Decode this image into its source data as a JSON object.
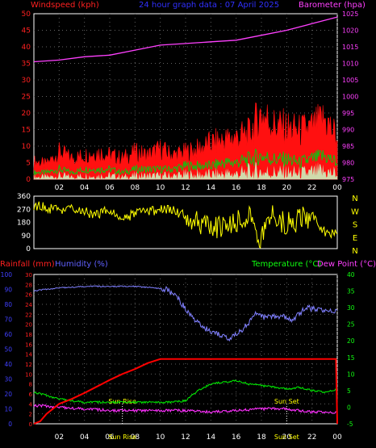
{
  "colors": {
    "background": "#000000",
    "red_axis": "#ff2020",
    "magenta": "#ff40ff",
    "blue": "#4040ff",
    "green": "#10ff10",
    "yellow": "#ffff00",
    "wind_gust": "#ff1010",
    "wind_avg": "#10c010",
    "wind_calm": "#c8ffc8",
    "humidity": "#8080ff",
    "dewpoint": "#ff30ff",
    "temperature": "#00e000",
    "rainfall": "#ff0000"
  },
  "chart_data": [
    {
      "type": "line",
      "panel": "wind-barometer",
      "title": "24 hour graph data : 07 April 2025",
      "left_axis_label": "Windspeed (kph)",
      "right_axis_label": "Barometer (hpa)",
      "left_ylim": [
        0,
        50
      ],
      "left_ticks": [
        "0",
        "5",
        "10",
        "15",
        "20",
        "25",
        "30",
        "35",
        "40",
        "45",
        "50"
      ],
      "right_ylim": [
        975,
        1025
      ],
      "right_ticks": [
        "975",
        "980",
        "985",
        "990",
        "995",
        "1000",
        "1005",
        "1010",
        "1015",
        "1020",
        "1025"
      ],
      "x_hours": [
        0,
        24
      ],
      "x_tick_labels": [
        "02",
        "04",
        "06",
        "08",
        "10",
        "12",
        "14",
        "16",
        "18",
        "20",
        "22",
        "00"
      ],
      "grid": true,
      "series": [
        {
          "name": "Barometer",
          "axis": "right",
          "color_key": "magenta",
          "x": [
            0,
            2,
            4,
            6,
            8,
            10,
            12,
            14,
            16,
            18,
            20,
            22,
            24
          ],
          "values": [
            1010.5,
            1011,
            1012,
            1012.5,
            1014,
            1015.5,
            1016,
            1016.5,
            1017,
            1018.5,
            1020,
            1022,
            1024
          ]
        },
        {
          "name": "Wind gust",
          "axis": "left",
          "color_key": "wind_gust",
          "x": [
            0,
            1,
            2,
            3,
            4,
            5,
            6,
            7,
            8,
            9,
            10,
            11,
            12,
            13,
            14,
            15,
            16,
            17,
            18,
            19,
            20,
            21,
            22,
            23,
            24
          ],
          "values": [
            6,
            5,
            9,
            7,
            8,
            9,
            8,
            7,
            9,
            8,
            10,
            8,
            9,
            10,
            12,
            13,
            14,
            15,
            22,
            18,
            17,
            16,
            17,
            20,
            14
          ]
        },
        {
          "name": "Wind average",
          "axis": "left",
          "color_key": "wind_avg",
          "x": [
            0,
            1,
            2,
            3,
            4,
            5,
            6,
            7,
            8,
            9,
            10,
            11,
            12,
            13,
            14,
            15,
            16,
            17,
            18,
            19,
            20,
            21,
            22,
            23,
            24
          ],
          "values": [
            2,
            2,
            3,
            2,
            3,
            3,
            3,
            2,
            3,
            3,
            3,
            3,
            4,
            4,
            4,
            5,
            5,
            6,
            7,
            6,
            6,
            5,
            6,
            7,
            5
          ]
        }
      ]
    },
    {
      "type": "line",
      "panel": "wind-direction",
      "left_ylim": [
        0,
        360
      ],
      "left_ticks": [
        "0",
        "90",
        "180",
        "270",
        "360"
      ],
      "direction_labels": [
        "N",
        "W",
        "S",
        "E",
        "N"
      ],
      "series": [
        {
          "name": "Wind direction",
          "color_key": "yellow",
          "x": [
            0,
            1,
            2,
            3,
            4,
            5,
            6,
            7,
            8,
            9,
            10,
            11,
            12,
            13,
            14,
            15,
            16,
            17,
            18,
            19,
            20,
            21,
            22,
            23,
            24
          ],
          "values": [
            300,
            280,
            260,
            270,
            250,
            240,
            260,
            200,
            240,
            250,
            270,
            260,
            230,
            180,
            160,
            150,
            200,
            210,
            60,
            250,
            160,
            200,
            230,
            110,
            100
          ]
        }
      ]
    },
    {
      "type": "line",
      "panel": "temperature-humidity-rain",
      "rain_axis_label": "Rainfall (mm)",
      "humidity_axis_label": "Humidity (%)",
      "temp_axis_label": "Temperature (°C)",
      "dew_axis_label": "Dew Point (°C)",
      "rain_ylim": [
        0,
        30
      ],
      "rain_ticks": [
        "0",
        "2",
        "4",
        "6",
        "8",
        "10",
        "12",
        "14",
        "16",
        "18",
        "20",
        "22",
        "24",
        "26",
        "28",
        "30"
      ],
      "humidity_ylim": [
        0,
        100
      ],
      "humidity_ticks": [
        "0",
        "10",
        "20",
        "30",
        "40",
        "50",
        "60",
        "70",
        "80",
        "90",
        "100"
      ],
      "temp_ylim": [
        -5,
        40
      ],
      "temp_ticks": [
        "-5",
        "0",
        "5",
        "10",
        "15",
        "20",
        "25",
        "30",
        "35",
        "40"
      ],
      "annotations": [
        {
          "text": "Sun Rise",
          "hour": 7.0
        },
        {
          "text": "Sun Set",
          "hour": 20.0
        }
      ],
      "series": [
        {
          "name": "Humidity",
          "axis": "humidity",
          "color_key": "humidity",
          "x": [
            0,
            2,
            4,
            6,
            8,
            9.5,
            10.5,
            11.5,
            12.5,
            13.5,
            14.5,
            15.5,
            16.5,
            17.5,
            18.5,
            19.5,
            20.5,
            21.5,
            22.5,
            23.5,
            24
          ],
          "values": [
            89,
            91,
            92,
            92,
            92,
            91,
            90,
            83,
            71,
            64,
            60,
            57,
            63,
            73,
            71,
            72,
            70,
            78,
            76,
            76,
            76
          ]
        },
        {
          "name": "Temperature",
          "axis": "temp",
          "color_key": "temperature",
          "x": [
            0,
            1,
            2,
            3,
            4,
            5,
            6,
            7,
            8,
            9,
            10,
            11,
            12,
            13,
            14,
            15,
            16,
            17,
            18,
            19,
            20,
            21,
            22,
            23,
            24
          ],
          "values": [
            4.5,
            3.5,
            2.5,
            2,
            1.5,
            1.5,
            1.5,
            1.5,
            1.5,
            1.5,
            1.5,
            1.5,
            2,
            5,
            7,
            7.5,
            8,
            7,
            6.5,
            6,
            5.5,
            6,
            5,
            4.5,
            5.5
          ]
        },
        {
          "name": "Dew Point",
          "axis": "temp",
          "color_key": "dewpoint",
          "x": [
            0,
            2,
            4,
            6,
            8,
            10,
            12,
            14,
            16,
            18,
            20,
            22,
            24
          ],
          "values": [
            0.5,
            0,
            -0.5,
            -1,
            -1,
            -1,
            -1,
            -1.5,
            -1,
            -0.5,
            -0.5,
            -1.5,
            -1.5
          ]
        },
        {
          "name": "Rainfall",
          "axis": "rain",
          "color_key": "rainfall",
          "x": [
            0,
            0.5,
            1,
            2,
            3,
            4,
            5,
            6,
            7,
            8,
            9,
            10,
            11,
            12,
            13,
            14,
            15,
            16,
            17,
            18,
            19,
            20,
            21,
            22,
            23,
            23.9,
            24
          ],
          "values": [
            0,
            0.5,
            2,
            4,
            5,
            6.2,
            7.5,
            8.8,
            10,
            11,
            12.2,
            13,
            13,
            13,
            13,
            13,
            13,
            13,
            13,
            13,
            13,
            13,
            13,
            13,
            13,
            13,
            0
          ]
        }
      ]
    }
  ]
}
